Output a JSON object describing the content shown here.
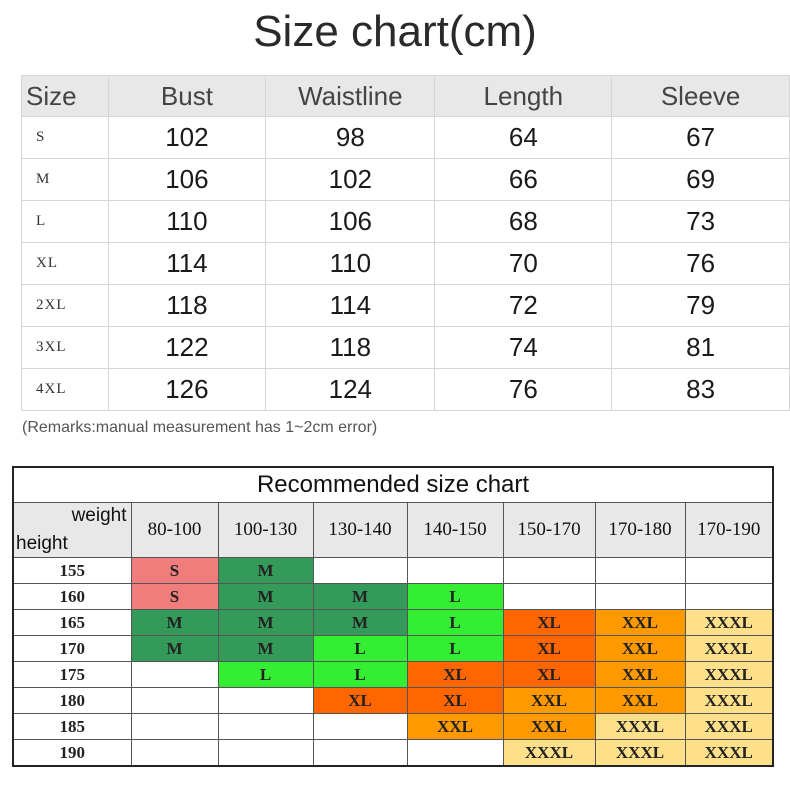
{
  "title": "Size chart(cm)",
  "size_table": {
    "headers": [
      "Size",
      "Bust",
      "Waistline",
      "Length",
      "Sleeve"
    ],
    "rows": [
      [
        "S",
        "102",
        "98",
        "64",
        "67"
      ],
      [
        "M",
        "106",
        "102",
        "66",
        "69"
      ],
      [
        "L",
        "110",
        "106",
        "68",
        "73"
      ],
      [
        "XL",
        "114",
        "110",
        "70",
        "76"
      ],
      [
        "2XL",
        "118",
        "114",
        "72",
        "79"
      ],
      [
        "3XL",
        "122",
        "118",
        "74",
        "81"
      ],
      [
        "4XL",
        "126",
        "124",
        "76",
        "83"
      ]
    ]
  },
  "remark": "(Remarks:manual measurement has 1~2cm error)",
  "recommended": {
    "title": "Recommended size chart",
    "weight_label": "weight",
    "height_label": "height",
    "weights": [
      "80-100",
      "100-130",
      "130-140",
      "140-150",
      "150-170",
      "170-180",
      "170-190"
    ],
    "rows": [
      {
        "height": "155",
        "cells": [
          "S",
          "M",
          "",
          "",
          "",
          "",
          ""
        ]
      },
      {
        "height": "160",
        "cells": [
          "S",
          "M",
          "M",
          "L",
          "",
          "",
          ""
        ]
      },
      {
        "height": "165",
        "cells": [
          "M",
          "M",
          "M",
          "L",
          "XL",
          "XXL",
          "XXXL"
        ]
      },
      {
        "height": "170",
        "cells": [
          "M",
          "M",
          "L",
          "L",
          "XL",
          "XXL",
          "XXXL"
        ]
      },
      {
        "height": "175",
        "cells": [
          "",
          "L",
          "L",
          "XL",
          "XL",
          "XXL",
          "XXXL"
        ]
      },
      {
        "height": "180",
        "cells": [
          "",
          "",
          "XL",
          "XL",
          "XXL",
          "XXL",
          "XXXL"
        ]
      },
      {
        "height": "185",
        "cells": [
          "",
          "",
          "",
          "XXL",
          "XXL",
          "XXXL",
          "XXXL"
        ]
      },
      {
        "height": "190",
        "cells": [
          "",
          "",
          "",
          "",
          "XXXL",
          "XXXL",
          "XXXL"
        ]
      }
    ],
    "colors": {
      "S": "#f07c7c",
      "M": "#339a5a",
      "L": "#33ee33",
      "XL": "#ff6600",
      "XXL": "#ff9900",
      "XXXL": "#ffe08a"
    }
  }
}
